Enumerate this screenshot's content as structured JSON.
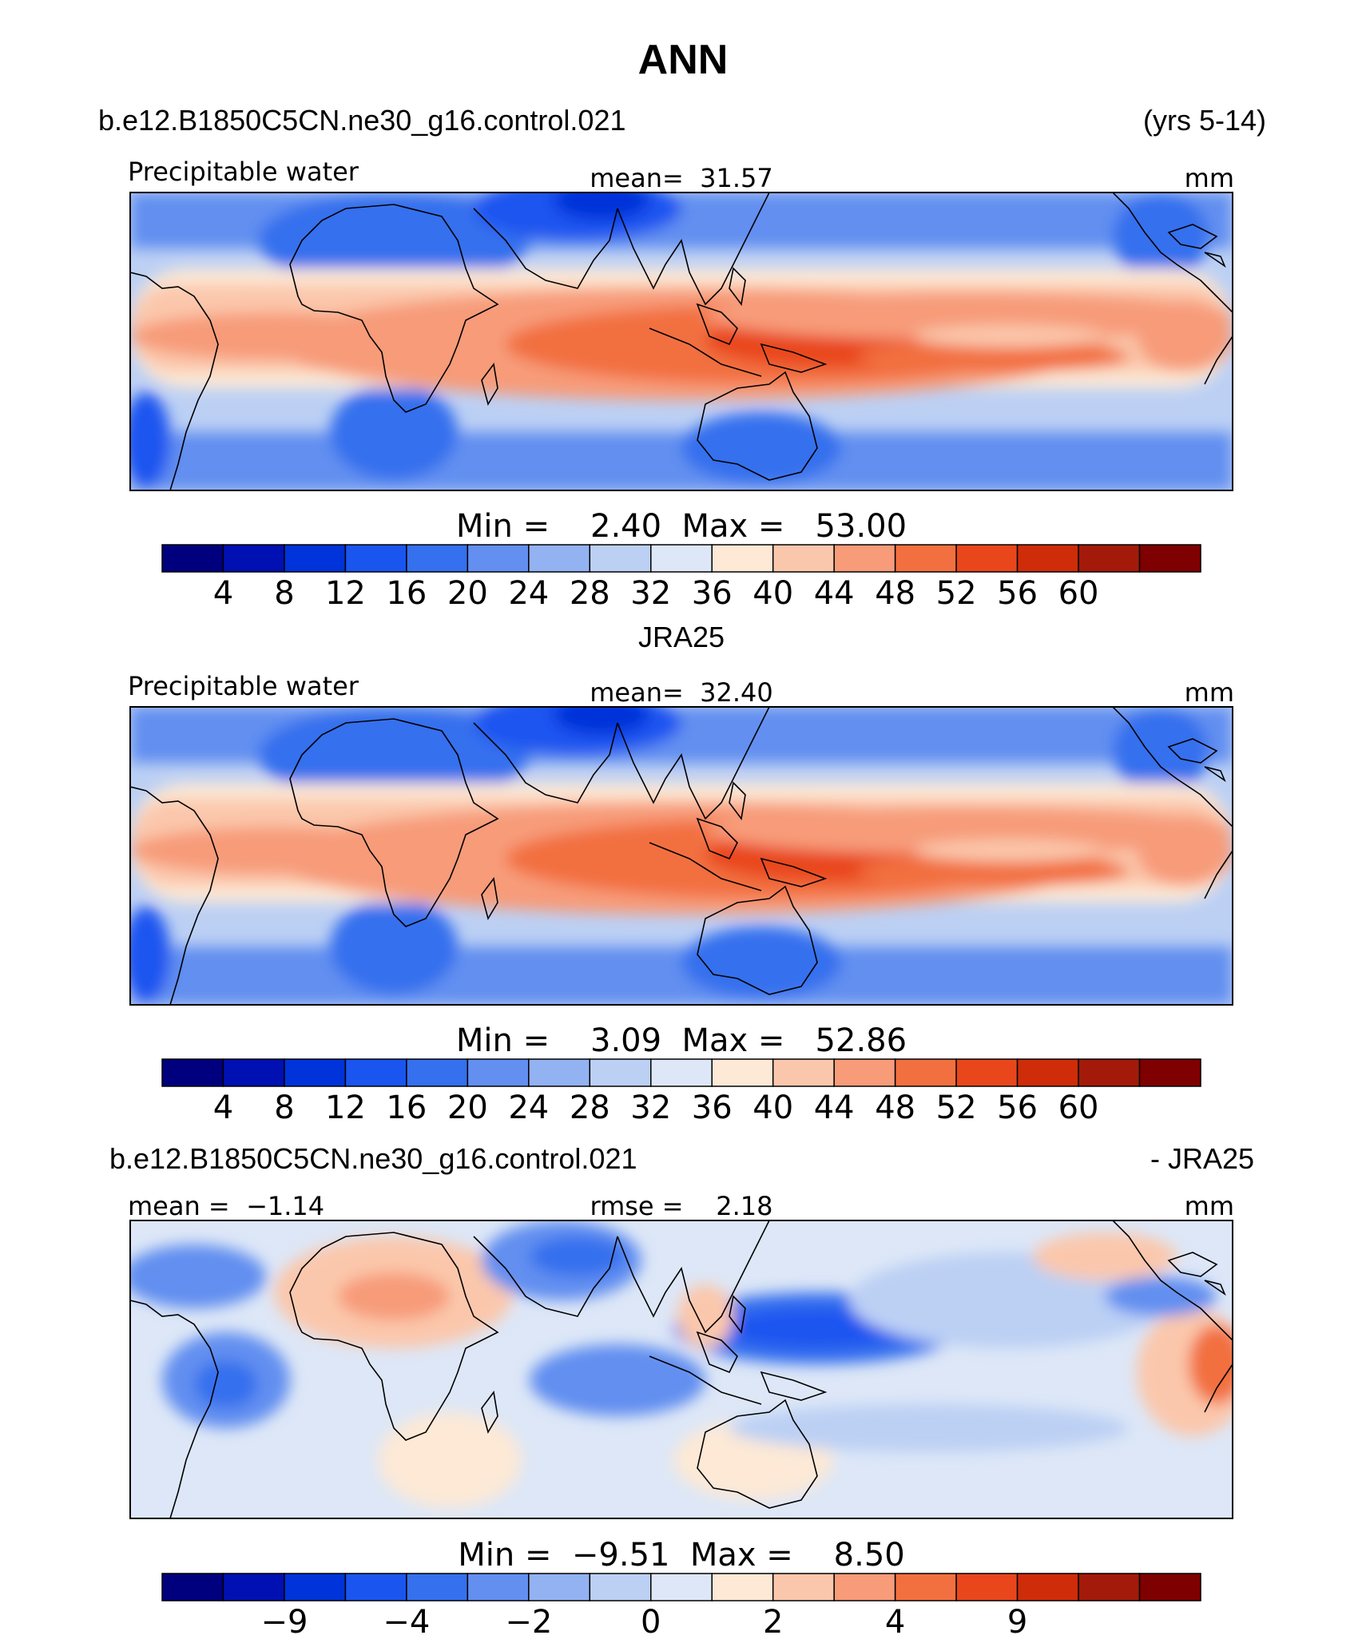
{
  "page": {
    "title": "ANN",
    "case_name": "b.e12.B1850C5CN.ne30_g16.control.021",
    "years": "(yrs 5-14)"
  },
  "panels": [
    {
      "id": "model",
      "left_label": "Precipitable water",
      "center_label": "mean=  31.57",
      "right_label": "mm",
      "minmax": "Min =    2.40  Max =   53.00"
    },
    {
      "id": "obs",
      "title": "JRA25",
      "left_label": "Precipitable water",
      "center_label": "mean=  32.40",
      "right_label": "mm",
      "minmax": "Min =    3.09  Max =   52.86"
    },
    {
      "id": "diff",
      "title_left": "b.e12.B1850C5CN.ne30_g16.control.021",
      "title_right": "- JRA25",
      "left_label": "mean =  −1.14",
      "center_label": "rmse =    2.18",
      "right_label": "mm",
      "minmax": "Min =  −9.51  Max =    8.50"
    }
  ],
  "colorbars": {
    "abs": {
      "colors": [
        "#00007f",
        "#0010b2",
        "#0033d9",
        "#1a55f0",
        "#3570ee",
        "#628ff0",
        "#93b2f2",
        "#bcd0f4",
        "#dde7f7",
        "#fde9d6",
        "#fbc7ac",
        "#f79b79",
        "#f2703f",
        "#e9461c",
        "#cf2c0a",
        "#a31a0a",
        "#7f0000"
      ],
      "labels": [
        "4",
        "8",
        "12",
        "16",
        "20",
        "24",
        "28",
        "32",
        "36",
        "40",
        "44",
        "48",
        "52",
        "56",
        "60"
      ],
      "label_slots": [
        1,
        2,
        3,
        4,
        5,
        6,
        7,
        8,
        9,
        10,
        11,
        12,
        13,
        14,
        15
      ]
    },
    "diff": {
      "colors": [
        "#00007f",
        "#0010b2",
        "#0033d9",
        "#1a55f0",
        "#3570ee",
        "#628ff0",
        "#93b2f2",
        "#bcd0f4",
        "#dde7f7",
        "#fde9d6",
        "#fbc7ac",
        "#f79b79",
        "#f2703f",
        "#e9461c",
        "#cf2c0a",
        "#a31a0a",
        "#7f0000"
      ],
      "labels": [
        "−9",
        "−4",
        "−2",
        "0",
        "2",
        "4",
        "9"
      ],
      "label_slots": [
        2,
        4,
        6,
        8,
        10,
        12,
        14
      ]
    }
  },
  "map_colors": {
    "abs_levels": [
      "#1a55f0",
      "#3570ee",
      "#628ff0",
      "#93b2f2",
      "#bcd0f4",
      "#dde7f7",
      "#fde9d6",
      "#fbc7ac",
      "#f79b79",
      "#f2703f",
      "#e9461c"
    ],
    "diff_neutral": "#dde7f7",
    "diff_blue_dark": "#1a3fe0",
    "diff_blue": "#628ff0",
    "diff_blue_light": "#bcd0f4",
    "diff_red_light": "#fbc7ac",
    "diff_red": "#f2703f",
    "coast": "#000000"
  }
}
